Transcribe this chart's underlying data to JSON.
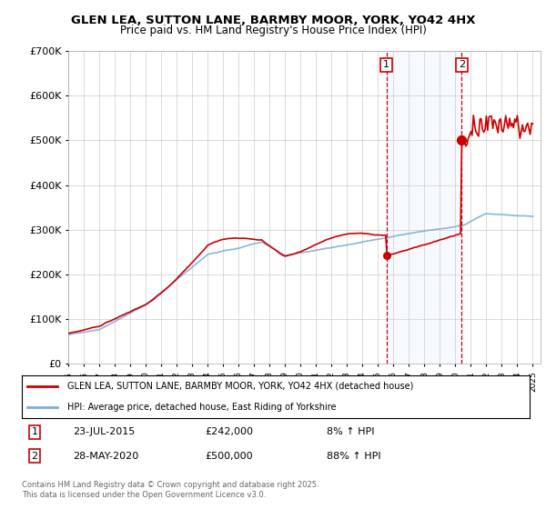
{
  "title": "GLEN LEA, SUTTON LANE, BARMBY MOOR, YORK, YO42 4HX",
  "subtitle": "Price paid vs. HM Land Registry's House Price Index (HPI)",
  "background_color": "#ffffff",
  "plot_bg_color": "#ffffff",
  "grid_color": "#cccccc",
  "line1_color": "#cc0000",
  "line2_color": "#7bafd4",
  "shade_color": "#ddeeff",
  "marker1_year": 2015.55,
  "marker2_year": 2020.41,
  "marker1_price": 242000,
  "marker2_price": 500000,
  "sale1_label": "1",
  "sale2_label": "2",
  "sale1_date": "23-JUL-2015",
  "sale1_price": "£242,000",
  "sale1_hpi": "8% ↑ HPI",
  "sale2_date": "28-MAY-2020",
  "sale2_price": "£500,000",
  "sale2_hpi": "88% ↑ HPI",
  "legend_line1": "GLEN LEA, SUTTON LANE, BARMBY MOOR, YORK, YO42 4HX (detached house)",
  "legend_line2": "HPI: Average price, detached house, East Riding of Yorkshire",
  "footer": "Contains HM Land Registry data © Crown copyright and database right 2025.\nThis data is licensed under the Open Government Licence v3.0.",
  "xmin": 1995,
  "xmax": 2025.5,
  "ymin": 0,
  "ymax": 700000,
  "yticks": [
    0,
    100000,
    200000,
    300000,
    400000,
    500000,
    600000,
    700000
  ],
  "ytick_labels": [
    "£0",
    "£100K",
    "£200K",
    "£300K",
    "£400K",
    "£500K",
    "£600K",
    "£700K"
  ]
}
